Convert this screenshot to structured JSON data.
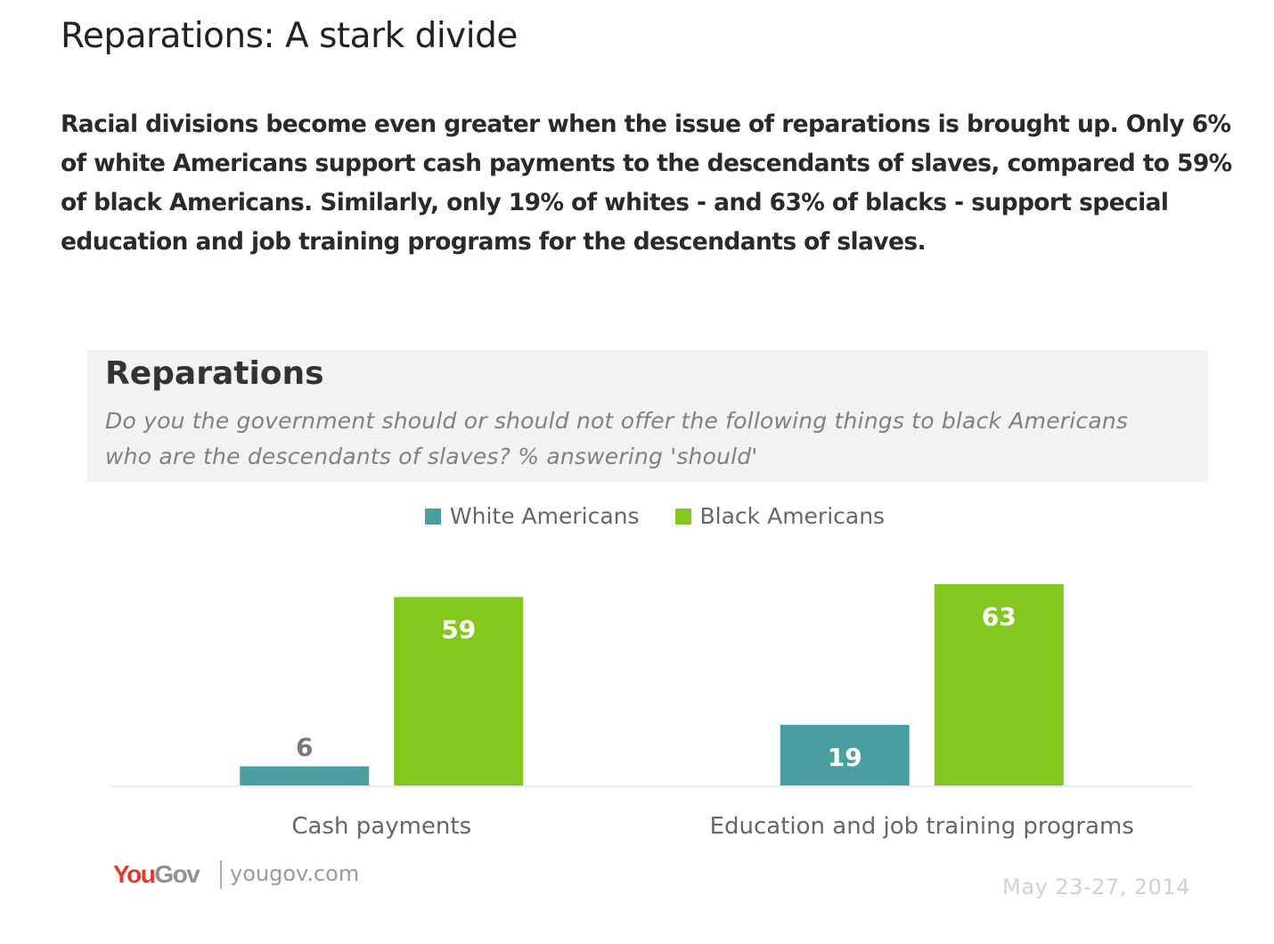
{
  "page": {
    "title": "Reparations: A stark divide",
    "intro": "Racial divisions become even greater when the issue of reparations is brought up. Only 6% of white Americans support cash payments to the descendants of slaves, compared to 59% of black Americans. Similarly, only 19% of whites - and 63% of blacks - support special education and job training programs for the descendants of slaves."
  },
  "chart_data": {
    "type": "bar",
    "title": "Reparations",
    "subtitle": "Do you the government should or should not offer the following things to black Americans who are the descendants of slaves? % answering 'should'",
    "categories": [
      "Cash payments",
      "Education and job training programs"
    ],
    "series": [
      {
        "name": "White Americans",
        "values": [
          6,
          19
        ],
        "color": "#4aa0a0",
        "label_color_inside": "#ffffff",
        "label_color_outside": "#7a7a7a"
      },
      {
        "name": "Black Americans",
        "values": [
          59,
          63
        ],
        "color": "#84c71e",
        "label_color_inside": "#ffffff",
        "label_color_outside": "#7a7a7a"
      }
    ],
    "ylim": [
      0,
      80
    ],
    "grid": false,
    "legend": "top-center",
    "xlabel": "",
    "ylabel": ""
  },
  "footer": {
    "brand_you": "You",
    "brand_gov": "Gov",
    "site": "yougov.com",
    "date": "May 23-27, 2014"
  }
}
